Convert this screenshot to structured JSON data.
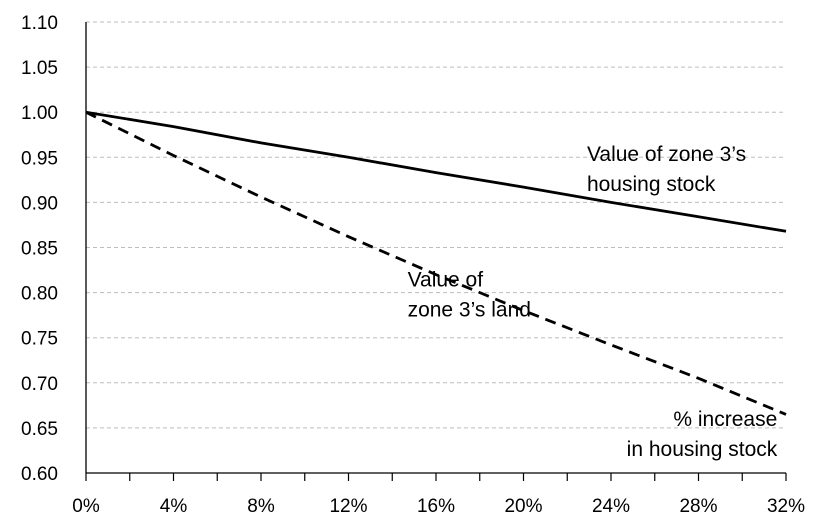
{
  "chart_data": {
    "type": "line",
    "title": "",
    "xlabel": "",
    "ylabel": "",
    "x_tick_labels": [
      "0%",
      "4%",
      "8%",
      "12%",
      "16%",
      "20%",
      "24%",
      "28%",
      "32%"
    ],
    "x_ticks": [
      0,
      4,
      8,
      12,
      16,
      20,
      24,
      28,
      32
    ],
    "y_tick_labels": [
      "0.60",
      "0.65",
      "0.70",
      "0.75",
      "0.80",
      "0.85",
      "0.90",
      "0.95",
      "1.00",
      "1.05",
      "1.10"
    ],
    "y_ticks": [
      0.6,
      0.65,
      0.7,
      0.75,
      0.8,
      0.85,
      0.9,
      0.95,
      1.0,
      1.05,
      1.1
    ],
    "xlim": [
      0,
      32
    ],
    "ylim": [
      0.6,
      1.1
    ],
    "grid": "horizontal dashed",
    "legend": "none (inline annotations)",
    "series": [
      {
        "style": "solid",
        "color": "#000000",
        "x": [
          0,
          4,
          8,
          12,
          16,
          20,
          24,
          28,
          32
        ],
        "y": [
          1.0,
          0.984,
          0.966,
          0.95,
          0.933,
          0.917,
          0.9,
          0.884,
          0.868
        ]
      },
      {
        "style": "dashed",
        "color": "#000000",
        "x": [
          0,
          4,
          8,
          12,
          16,
          20,
          24,
          28,
          32
        ],
        "y": [
          1.0,
          0.952,
          0.906,
          0.862,
          0.82,
          0.78,
          0.742,
          0.705,
          0.665
        ]
      }
    ],
    "annotations": [
      {
        "lines": [
          "Value of zone 3’s",
          "housing stock"
        ],
        "anchor": "start",
        "x": 22.9,
        "y": 0.946
      },
      {
        "lines": [
          "Value of",
          "zone 3’s land"
        ],
        "anchor": "start",
        "x": 14.7,
        "y": 0.807
      },
      {
        "lines": [
          "% increase",
          "in housing stock"
        ],
        "anchor": "end",
        "x": 31.6,
        "y": 0.652
      }
    ]
  }
}
